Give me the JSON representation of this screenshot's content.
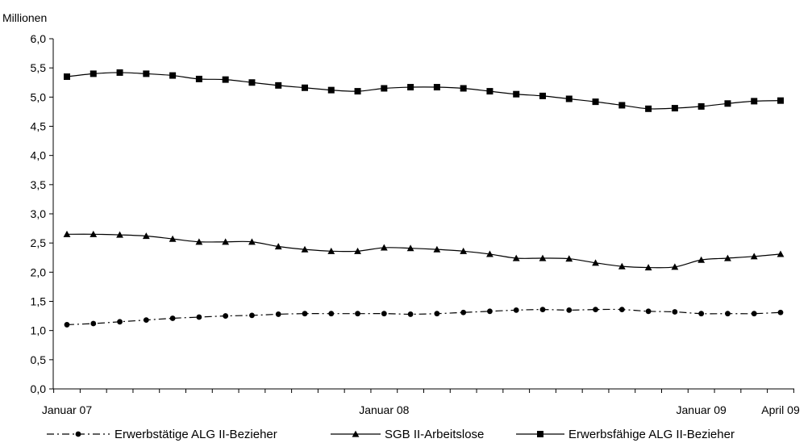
{
  "chart_data": {
    "type": "line",
    "unit_label": "Millionen",
    "x": [
      "2007-01",
      "2007-02",
      "2007-03",
      "2007-04",
      "2007-05",
      "2007-06",
      "2007-07",
      "2007-08",
      "2007-09",
      "2007-10",
      "2007-11",
      "2007-12",
      "2008-01",
      "2008-02",
      "2008-03",
      "2008-04",
      "2008-05",
      "2008-06",
      "2008-07",
      "2008-08",
      "2008-09",
      "2008-10",
      "2008-11",
      "2008-12",
      "2009-01",
      "2009-02",
      "2009-03",
      "2009-04"
    ],
    "x_tick_labels": [
      {
        "at": "2007-01",
        "label": "Januar 07"
      },
      {
        "at": "2008-01",
        "label": "Januar 08"
      },
      {
        "at": "2009-01",
        "label": "Januar 09"
      },
      {
        "at": "2009-04",
        "label": "April 09"
      }
    ],
    "ylim": [
      0,
      6
    ],
    "y_ticks": [
      0,
      0.5,
      1,
      1.5,
      2,
      2.5,
      3,
      3.5,
      4,
      4.5,
      5,
      5.5,
      6
    ],
    "y_tick_labels": [
      "0,0",
      "0,5",
      "1,0",
      "1,5",
      "2,0",
      "2,5",
      "3,0",
      "3,5",
      "4,0",
      "4,5",
      "5,0",
      "5,5",
      "6,0"
    ],
    "grid": false,
    "legend_position": "bottom",
    "series": [
      {
        "name": "Erwerbstätige ALG II-Bezieher",
        "marker": "circle",
        "line_style": "dash-dot",
        "color": "#000000",
        "values": [
          1.1,
          1.12,
          1.15,
          1.18,
          1.21,
          1.23,
          1.25,
          1.26,
          1.28,
          1.29,
          1.29,
          1.29,
          1.29,
          1.28,
          1.29,
          1.31,
          1.33,
          1.35,
          1.36,
          1.35,
          1.36,
          1.36,
          1.33,
          1.32,
          1.29,
          1.29,
          1.29,
          1.31
        ]
      },
      {
        "name": "SGB II-Arbeitslose",
        "marker": "triangle",
        "line_style": "solid",
        "color": "#000000",
        "values": [
          2.65,
          2.65,
          2.64,
          2.62,
          2.57,
          2.52,
          2.52,
          2.52,
          2.44,
          2.39,
          2.36,
          2.36,
          2.42,
          2.41,
          2.39,
          2.36,
          2.31,
          2.24,
          2.24,
          2.23,
          2.16,
          2.1,
          2.08,
          2.09,
          2.21,
          2.24,
          2.27,
          2.31
        ]
      },
      {
        "name": "Erwerbsfähige ALG II-Bezieher",
        "marker": "square",
        "line_style": "solid",
        "color": "#000000",
        "values": [
          5.35,
          5.4,
          5.42,
          5.4,
          5.37,
          5.31,
          5.3,
          5.25,
          5.2,
          5.16,
          5.12,
          5.1,
          5.15,
          5.17,
          5.17,
          5.15,
          5.1,
          5.05,
          5.02,
          4.97,
          4.92,
          4.86,
          4.8,
          4.81,
          4.84,
          4.89,
          4.93,
          4.94
        ]
      }
    ]
  }
}
